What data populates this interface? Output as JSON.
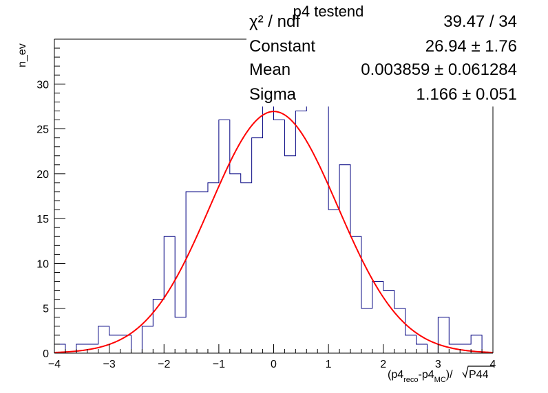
{
  "chart_data": {
    "type": "histogram",
    "title": "p4 testend",
    "xlabel": "(p4reco-p4MC)/√P44",
    "xlabel_parts": {
      "lead": "(p4",
      "sub1": "reco",
      "mid": "-p4",
      "sub2": "MC",
      "tail": ")/",
      "radicand": "P44"
    },
    "ylabel": "n_ev",
    "xlim": [
      -4,
      4
    ],
    "ylim": [
      0,
      35
    ],
    "xticks": [
      -4,
      -3,
      -2,
      -1,
      0,
      1,
      2,
      3,
      4
    ],
    "yticks": [
      0,
      5,
      10,
      15,
      20,
      25,
      30
    ],
    "grid": false,
    "series": [
      {
        "kind": "histogram",
        "bin_edges": [
          -4.0,
          -3.8,
          -3.6,
          -3.4,
          -3.2,
          -3.0,
          -2.8,
          -2.6,
          -2.4,
          -2.2,
          -2.0,
          -1.8,
          -1.6,
          -1.4,
          -1.2,
          -1.0,
          -0.8,
          -0.6,
          -0.4,
          -0.2,
          0.0,
          0.2,
          0.4,
          0.6,
          0.8,
          1.0,
          1.2,
          1.4,
          1.6,
          1.8,
          2.0,
          2.2,
          2.4,
          2.6,
          2.8,
          3.0,
          3.2,
          3.4,
          3.6,
          3.8,
          4.0
        ],
        "counts": [
          1,
          0,
          1,
          1,
          3,
          2,
          2,
          0,
          3,
          6,
          13,
          4,
          18,
          18,
          19,
          26,
          20,
          19,
          24,
          29,
          26,
          22,
          27,
          29,
          29,
          16,
          21,
          13,
          5,
          8,
          7,
          5,
          2,
          1,
          0,
          4,
          1,
          1,
          2,
          0
        ],
        "color": "#000080"
      },
      {
        "kind": "gaussian-fit",
        "constant": 26.94,
        "mean": 0.003859,
        "sigma": 1.166,
        "color": "#ff0000"
      }
    ],
    "stats_box": {
      "rows": [
        {
          "label": "χ² / ndf",
          "value": "39.47 / 34"
        },
        {
          "label": "Constant",
          "value": "26.94 ± 1.76"
        },
        {
          "label": "Mean",
          "value": "0.003859 ± 0.061284"
        },
        {
          "label": "Sigma",
          "value": "1.166 ± 0.051"
        }
      ]
    }
  }
}
